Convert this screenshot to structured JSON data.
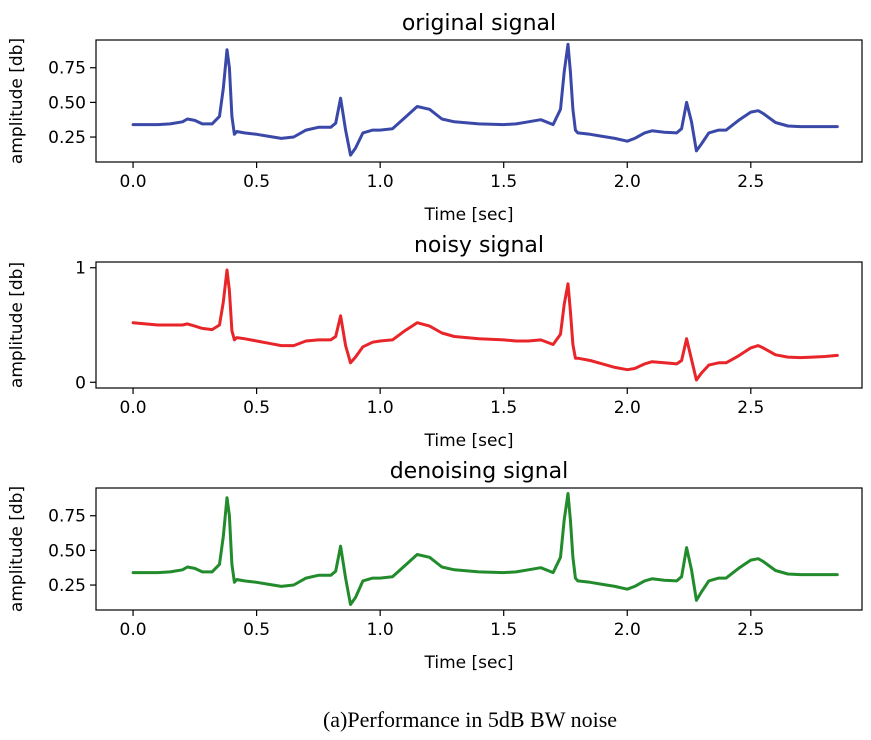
{
  "caption": "(a)Performance in 5dB BW noise",
  "chart_data": [
    {
      "type": "line",
      "title": "original signal",
      "xlabel": "Time [sec]",
      "ylabel": "amplitude [db]",
      "xlim": [
        -0.15,
        2.95
      ],
      "ylim": [
        0.07,
        0.95
      ],
      "xticks": [
        0.0,
        0.5,
        1.0,
        1.5,
        2.0,
        2.5
      ],
      "xtick_labels": [
        "0.0",
        "0.5",
        "1.0",
        "1.5",
        "2.0",
        "2.5"
      ],
      "yticks": [
        0.25,
        0.5,
        0.75
      ],
      "ytick_labels": [
        "0.25",
        "0.50",
        "0.75"
      ],
      "grid": false,
      "color": "#3a48a8",
      "series": [
        {
          "x": [
            0.0,
            0.05,
            0.1,
            0.15,
            0.2,
            0.22,
            0.25,
            0.28,
            0.32,
            0.35,
            0.365,
            0.38,
            0.39,
            0.4,
            0.41,
            0.42,
            0.45,
            0.5,
            0.55,
            0.6,
            0.65,
            0.7,
            0.75,
            0.8,
            0.82,
            0.84,
            0.86,
            0.88,
            0.9,
            0.93,
            0.97,
            1.0,
            1.05,
            1.1,
            1.15,
            1.2,
            1.25,
            1.3,
            1.4,
            1.5,
            1.55,
            1.6,
            1.65,
            1.7,
            1.73,
            1.745,
            1.76,
            1.77,
            1.78,
            1.79,
            1.8,
            1.85,
            1.9,
            1.95,
            2.0,
            2.03,
            2.07,
            2.1,
            2.15,
            2.2,
            2.22,
            2.24,
            2.26,
            2.28,
            2.3,
            2.33,
            2.37,
            2.4,
            2.45,
            2.5,
            2.53,
            2.55,
            2.6,
            2.65,
            2.7,
            2.75,
            2.8,
            2.85
          ],
          "y": [
            0.34,
            0.34,
            0.34,
            0.345,
            0.36,
            0.38,
            0.37,
            0.345,
            0.345,
            0.4,
            0.6,
            0.88,
            0.75,
            0.4,
            0.27,
            0.29,
            0.28,
            0.27,
            0.255,
            0.24,
            0.25,
            0.3,
            0.32,
            0.32,
            0.35,
            0.53,
            0.3,
            0.12,
            0.17,
            0.28,
            0.3,
            0.3,
            0.31,
            0.39,
            0.47,
            0.45,
            0.38,
            0.36,
            0.345,
            0.34,
            0.345,
            0.36,
            0.375,
            0.34,
            0.45,
            0.72,
            0.92,
            0.72,
            0.45,
            0.3,
            0.28,
            0.27,
            0.255,
            0.24,
            0.22,
            0.24,
            0.28,
            0.295,
            0.285,
            0.28,
            0.31,
            0.5,
            0.36,
            0.15,
            0.2,
            0.28,
            0.3,
            0.3,
            0.37,
            0.43,
            0.44,
            0.42,
            0.355,
            0.33,
            0.325,
            0.325,
            0.325,
            0.325
          ]
        }
      ]
    },
    {
      "type": "line",
      "title": "noisy signal",
      "xlabel": "Time [sec]",
      "ylabel": "amplitude [db]",
      "xlim": [
        -0.15,
        2.95
      ],
      "ylim": [
        -0.05,
        1.05
      ],
      "xticks": [
        0.0,
        0.5,
        1.0,
        1.5,
        2.0,
        2.5
      ],
      "xtick_labels": [
        "0.0",
        "0.5",
        "1.0",
        "1.5",
        "2.0",
        "2.5"
      ],
      "yticks": [
        0,
        1
      ],
      "ytick_labels": [
        "0",
        "1"
      ],
      "grid": false,
      "color": "#e8262a",
      "series": [
        {
          "x": [
            0.0,
            0.05,
            0.1,
            0.15,
            0.2,
            0.22,
            0.25,
            0.28,
            0.32,
            0.35,
            0.365,
            0.38,
            0.39,
            0.4,
            0.41,
            0.42,
            0.45,
            0.5,
            0.55,
            0.6,
            0.65,
            0.7,
            0.75,
            0.8,
            0.82,
            0.84,
            0.86,
            0.88,
            0.9,
            0.93,
            0.97,
            1.0,
            1.05,
            1.1,
            1.15,
            1.2,
            1.25,
            1.3,
            1.4,
            1.5,
            1.55,
            1.6,
            1.65,
            1.7,
            1.73,
            1.745,
            1.76,
            1.77,
            1.78,
            1.79,
            1.8,
            1.85,
            1.9,
            1.95,
            2.0,
            2.03,
            2.07,
            2.1,
            2.15,
            2.2,
            2.22,
            2.24,
            2.26,
            2.28,
            2.3,
            2.33,
            2.37,
            2.4,
            2.45,
            2.5,
            2.53,
            2.55,
            2.6,
            2.65,
            2.7,
            2.75,
            2.8,
            2.85
          ],
          "y": [
            0.52,
            0.51,
            0.5,
            0.5,
            0.5,
            0.51,
            0.49,
            0.47,
            0.46,
            0.5,
            0.7,
            0.98,
            0.8,
            0.45,
            0.37,
            0.39,
            0.38,
            0.36,
            0.34,
            0.32,
            0.32,
            0.36,
            0.37,
            0.37,
            0.4,
            0.58,
            0.32,
            0.17,
            0.22,
            0.31,
            0.35,
            0.36,
            0.37,
            0.45,
            0.52,
            0.49,
            0.43,
            0.4,
            0.38,
            0.37,
            0.36,
            0.36,
            0.37,
            0.33,
            0.42,
            0.68,
            0.86,
            0.62,
            0.33,
            0.21,
            0.21,
            0.19,
            0.16,
            0.13,
            0.11,
            0.12,
            0.16,
            0.18,
            0.17,
            0.16,
            0.19,
            0.38,
            0.2,
            0.02,
            0.08,
            0.15,
            0.17,
            0.17,
            0.23,
            0.3,
            0.32,
            0.3,
            0.24,
            0.22,
            0.215,
            0.22,
            0.225,
            0.235
          ]
        }
      ]
    },
    {
      "type": "line",
      "title": "denoising signal",
      "xlabel": "Time [sec]",
      "ylabel": "amplitude [db]",
      "xlim": [
        -0.15,
        2.95
      ],
      "ylim": [
        0.07,
        0.95
      ],
      "xticks": [
        0.0,
        0.5,
        1.0,
        1.5,
        2.0,
        2.5
      ],
      "xtick_labels": [
        "0.0",
        "0.5",
        "1.0",
        "1.5",
        "2.0",
        "2.5"
      ],
      "yticks": [
        0.25,
        0.5,
        0.75
      ],
      "ytick_labels": [
        "0.25",
        "0.50",
        "0.75"
      ],
      "grid": false,
      "color": "#228b2c",
      "series": [
        {
          "x": [
            0.0,
            0.05,
            0.1,
            0.15,
            0.2,
            0.22,
            0.25,
            0.28,
            0.32,
            0.35,
            0.365,
            0.38,
            0.39,
            0.4,
            0.41,
            0.42,
            0.45,
            0.5,
            0.55,
            0.6,
            0.65,
            0.7,
            0.75,
            0.8,
            0.82,
            0.84,
            0.86,
            0.88,
            0.9,
            0.93,
            0.97,
            1.0,
            1.05,
            1.1,
            1.15,
            1.2,
            1.25,
            1.3,
            1.4,
            1.5,
            1.55,
            1.6,
            1.65,
            1.7,
            1.73,
            1.745,
            1.76,
            1.77,
            1.78,
            1.79,
            1.8,
            1.85,
            1.9,
            1.95,
            2.0,
            2.03,
            2.07,
            2.1,
            2.15,
            2.2,
            2.22,
            2.24,
            2.26,
            2.28,
            2.3,
            2.33,
            2.37,
            2.4,
            2.45,
            2.5,
            2.53,
            2.55,
            2.6,
            2.65,
            2.7,
            2.75,
            2.8,
            2.85
          ],
          "y": [
            0.34,
            0.34,
            0.34,
            0.345,
            0.36,
            0.38,
            0.37,
            0.345,
            0.345,
            0.4,
            0.6,
            0.88,
            0.75,
            0.4,
            0.27,
            0.29,
            0.28,
            0.27,
            0.255,
            0.24,
            0.25,
            0.3,
            0.32,
            0.32,
            0.35,
            0.53,
            0.3,
            0.11,
            0.16,
            0.28,
            0.3,
            0.3,
            0.31,
            0.39,
            0.47,
            0.45,
            0.38,
            0.36,
            0.345,
            0.34,
            0.345,
            0.36,
            0.375,
            0.34,
            0.45,
            0.72,
            0.91,
            0.72,
            0.45,
            0.3,
            0.28,
            0.27,
            0.255,
            0.24,
            0.22,
            0.24,
            0.28,
            0.295,
            0.285,
            0.28,
            0.31,
            0.52,
            0.36,
            0.14,
            0.2,
            0.28,
            0.3,
            0.3,
            0.37,
            0.43,
            0.44,
            0.42,
            0.355,
            0.33,
            0.325,
            0.325,
            0.325,
            0.325
          ]
        }
      ]
    }
  ]
}
